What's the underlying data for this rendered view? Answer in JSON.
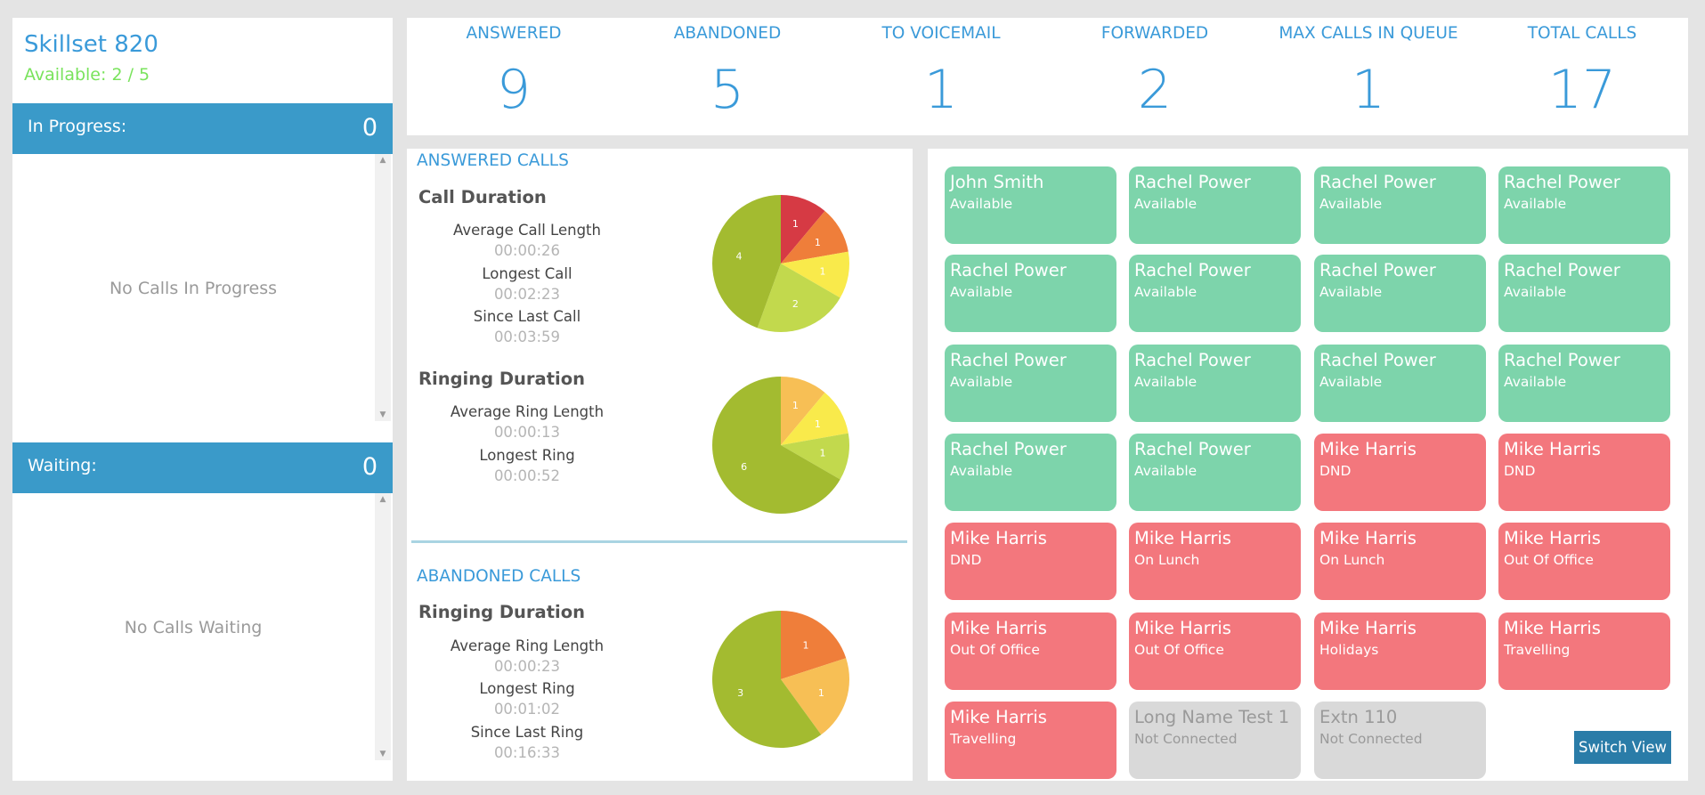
{
  "skillset": {
    "title": "Skillset 820",
    "available": "Available: 2 / 5"
  },
  "in_progress": {
    "label": "In Progress:",
    "count": "0",
    "empty": "No Calls In Progress"
  },
  "waiting": {
    "label": "Waiting:",
    "count": "0",
    "empty": "No Calls Waiting"
  },
  "stats": [
    {
      "label": "ANSWERED",
      "value": "9"
    },
    {
      "label": "ABANDONED",
      "value": "5"
    },
    {
      "label": "TO VOICEMAIL",
      "value": "1"
    },
    {
      "label": "FORWARDED",
      "value": "2"
    },
    {
      "label": "MAX CALLS IN QUEUE",
      "value": "1"
    },
    {
      "label": "TOTAL CALLS",
      "value": "17"
    }
  ],
  "answered": {
    "title": "ANSWERED CALLS",
    "call_duration": {
      "title": "Call Duration",
      "avg_label": "Average Call Length",
      "avg_value": "00:00:26",
      "longest_label": "Longest Call",
      "longest_value": "00:02:23",
      "since_label": "Since Last Call",
      "since_value": "00:03:59"
    },
    "ringing_duration": {
      "title": "Ringing Duration",
      "avg_label": "Average Ring Length",
      "avg_value": "00:00:13",
      "longest_label": "Longest Ring",
      "longest_value": "00:00:52"
    }
  },
  "abandoned": {
    "title": "ABANDONED CALLS",
    "ringing_duration": {
      "title": "Ringing Duration",
      "avg_label": "Average Ring Length",
      "avg_value": "00:00:23",
      "longest_label": "Longest Ring",
      "longest_value": "00:01:02",
      "since_label": "Since Last Ring",
      "since_value": "00:16:33"
    }
  },
  "chart_data": [
    {
      "type": "pie",
      "values": [
        1,
        1,
        1,
        2,
        4
      ],
      "colors": [
        "#d63a44",
        "#ef7e3a",
        "#f9ea4b",
        "#c2d94d",
        "#a3bb30"
      ]
    },
    {
      "type": "pie",
      "values": [
        1,
        1,
        1,
        6
      ],
      "colors": [
        "#f7bf55",
        "#f9ea4b",
        "#c2d94d",
        "#a3bb30"
      ]
    },
    {
      "type": "pie",
      "values": [
        1,
        1,
        3
      ],
      "colors": [
        "#ef7e3a",
        "#f7bf55",
        "#a3bb30"
      ]
    }
  ],
  "colors": {
    "accent": "#3a9ad9",
    "available": "#7dd4ab",
    "busy": "#f3777d",
    "offline": "#d9d9d9",
    "button": "#2a7ca8"
  },
  "agents": [
    {
      "name": "John Smith",
      "status": "Available",
      "state": "available"
    },
    {
      "name": "Rachel Power",
      "status": "Available",
      "state": "available"
    },
    {
      "name": "Rachel Power",
      "status": "Available",
      "state": "available"
    },
    {
      "name": "Rachel Power",
      "status": "Available",
      "state": "available"
    },
    {
      "name": "Rachel Power",
      "status": "Available",
      "state": "available"
    },
    {
      "name": "Rachel Power",
      "status": "Available",
      "state": "available"
    },
    {
      "name": "Rachel Power",
      "status": "Available",
      "state": "available"
    },
    {
      "name": "Rachel Power",
      "status": "Available",
      "state": "available"
    },
    {
      "name": "Rachel Power",
      "status": "Available",
      "state": "available"
    },
    {
      "name": "Rachel Power",
      "status": "Available",
      "state": "available"
    },
    {
      "name": "Rachel Power",
      "status": "Available",
      "state": "available"
    },
    {
      "name": "Rachel Power",
      "status": "Available",
      "state": "available"
    },
    {
      "name": "Rachel Power",
      "status": "Available",
      "state": "available"
    },
    {
      "name": "Rachel Power",
      "status": "Available",
      "state": "available"
    },
    {
      "name": "Mike Harris",
      "status": "DND",
      "state": "busy"
    },
    {
      "name": "Mike Harris",
      "status": "DND",
      "state": "busy"
    },
    {
      "name": "Mike Harris",
      "status": "DND",
      "state": "busy"
    },
    {
      "name": "Mike Harris",
      "status": "On Lunch",
      "state": "busy"
    },
    {
      "name": "Mike Harris",
      "status": "On Lunch",
      "state": "busy"
    },
    {
      "name": "Mike Harris",
      "status": "Out Of Office",
      "state": "busy"
    },
    {
      "name": "Mike Harris",
      "status": "Out Of Office",
      "state": "busy"
    },
    {
      "name": "Mike Harris",
      "status": "Out Of Office",
      "state": "busy"
    },
    {
      "name": "Mike Harris",
      "status": "Holidays",
      "state": "busy"
    },
    {
      "name": "Mike Harris",
      "status": "Travelling",
      "state": "busy"
    },
    {
      "name": "Mike Harris",
      "status": "Travelling",
      "state": "busy"
    },
    {
      "name": "Long Name Test 1",
      "status": "Not Connected",
      "state": "offline"
    },
    {
      "name": "Extn 110",
      "status": "Not Connected",
      "state": "offline"
    }
  ],
  "switch_view": "Switch View"
}
